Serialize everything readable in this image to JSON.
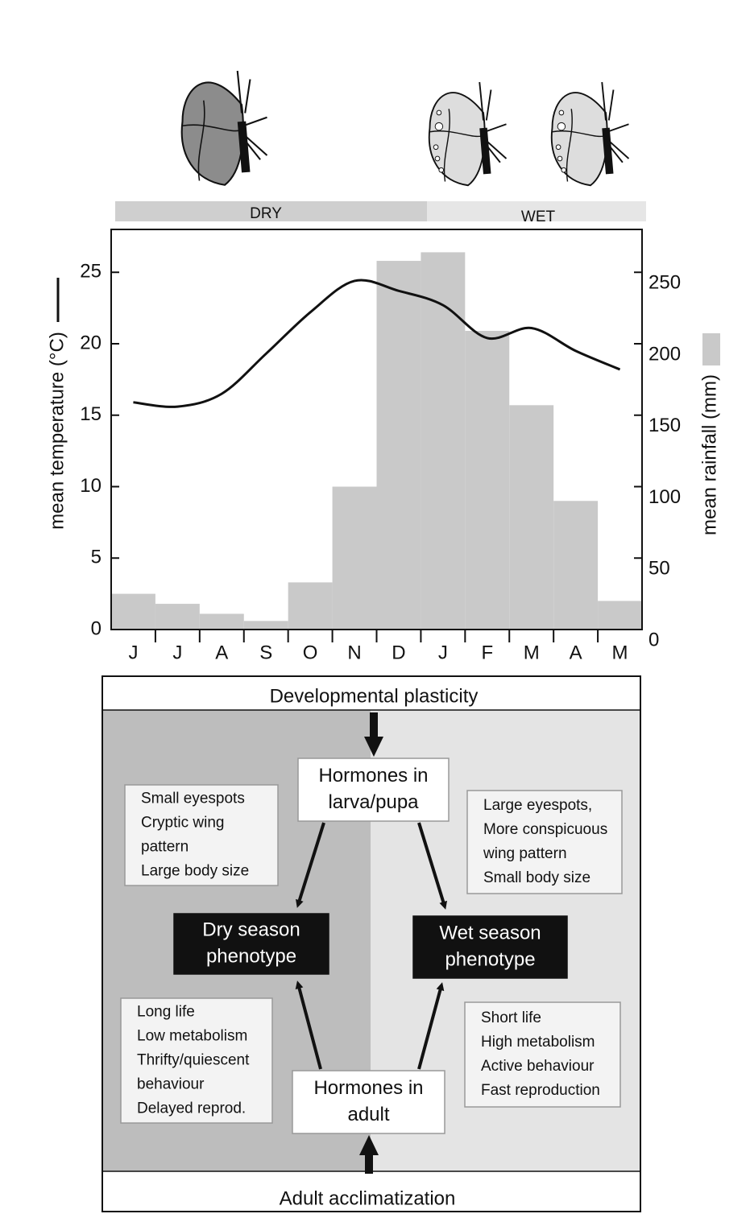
{
  "chart_data": {
    "type": "combo",
    "ylabel": "mean temperature (°C)",
    "y2label": "mean rainfall (mm)",
    "seasons": [
      "DRY",
      "WET"
    ],
    "categories": [
      "J",
      "J",
      "A",
      "S",
      "O",
      "N",
      "D",
      "J",
      "F",
      "M",
      "A",
      "M"
    ],
    "ylim": [
      0,
      28
    ],
    "yticks": [
      0,
      5,
      10,
      15,
      20,
      25
    ],
    "y2lim": [
      0,
      280
    ],
    "y2ticks": [
      0,
      50,
      100,
      150,
      200,
      250
    ],
    "series": [
      {
        "type": "bar",
        "axis": "y2",
        "color": "#c9c9c9",
        "values": [
          25,
          18,
          11,
          6,
          33,
          100,
          258,
          264,
          209,
          157,
          90,
          20
        ]
      },
      {
        "type": "line",
        "axis": "y",
        "color": "#111111",
        "values": [
          15.9,
          15.6,
          16.5,
          19.3,
          22.2,
          24.4,
          23.7,
          22.7,
          20.4,
          21.1,
          19.5,
          18.2
        ]
      }
    ]
  },
  "diagram": {
    "top": "Developmental plasticity",
    "bottom": "Adult acclimatization",
    "hormones_larva": [
      "Hormones in",
      "larva/pupa"
    ],
    "hormones_adult": [
      "Hormones in",
      "adult"
    ],
    "dry_phenotype": [
      "Dry season",
      "phenotype"
    ],
    "wet_phenotype": [
      "Wet season",
      "phenotype"
    ],
    "dry_traits": [
      "Small eyespots",
      "Cryptic wing",
      "pattern",
      "Large body size"
    ],
    "wet_traits": [
      "Large eyespots,",
      "More conspicuous",
      "wing pattern",
      "Small body size"
    ],
    "dry_life": [
      "Long life",
      "Low metabolism",
      "Thrifty/quiescent",
      "behaviour",
      "Delayed reprod."
    ],
    "wet_life": [
      "Short life",
      "High metabolism",
      "Active behaviour",
      "Fast reproduction"
    ]
  }
}
